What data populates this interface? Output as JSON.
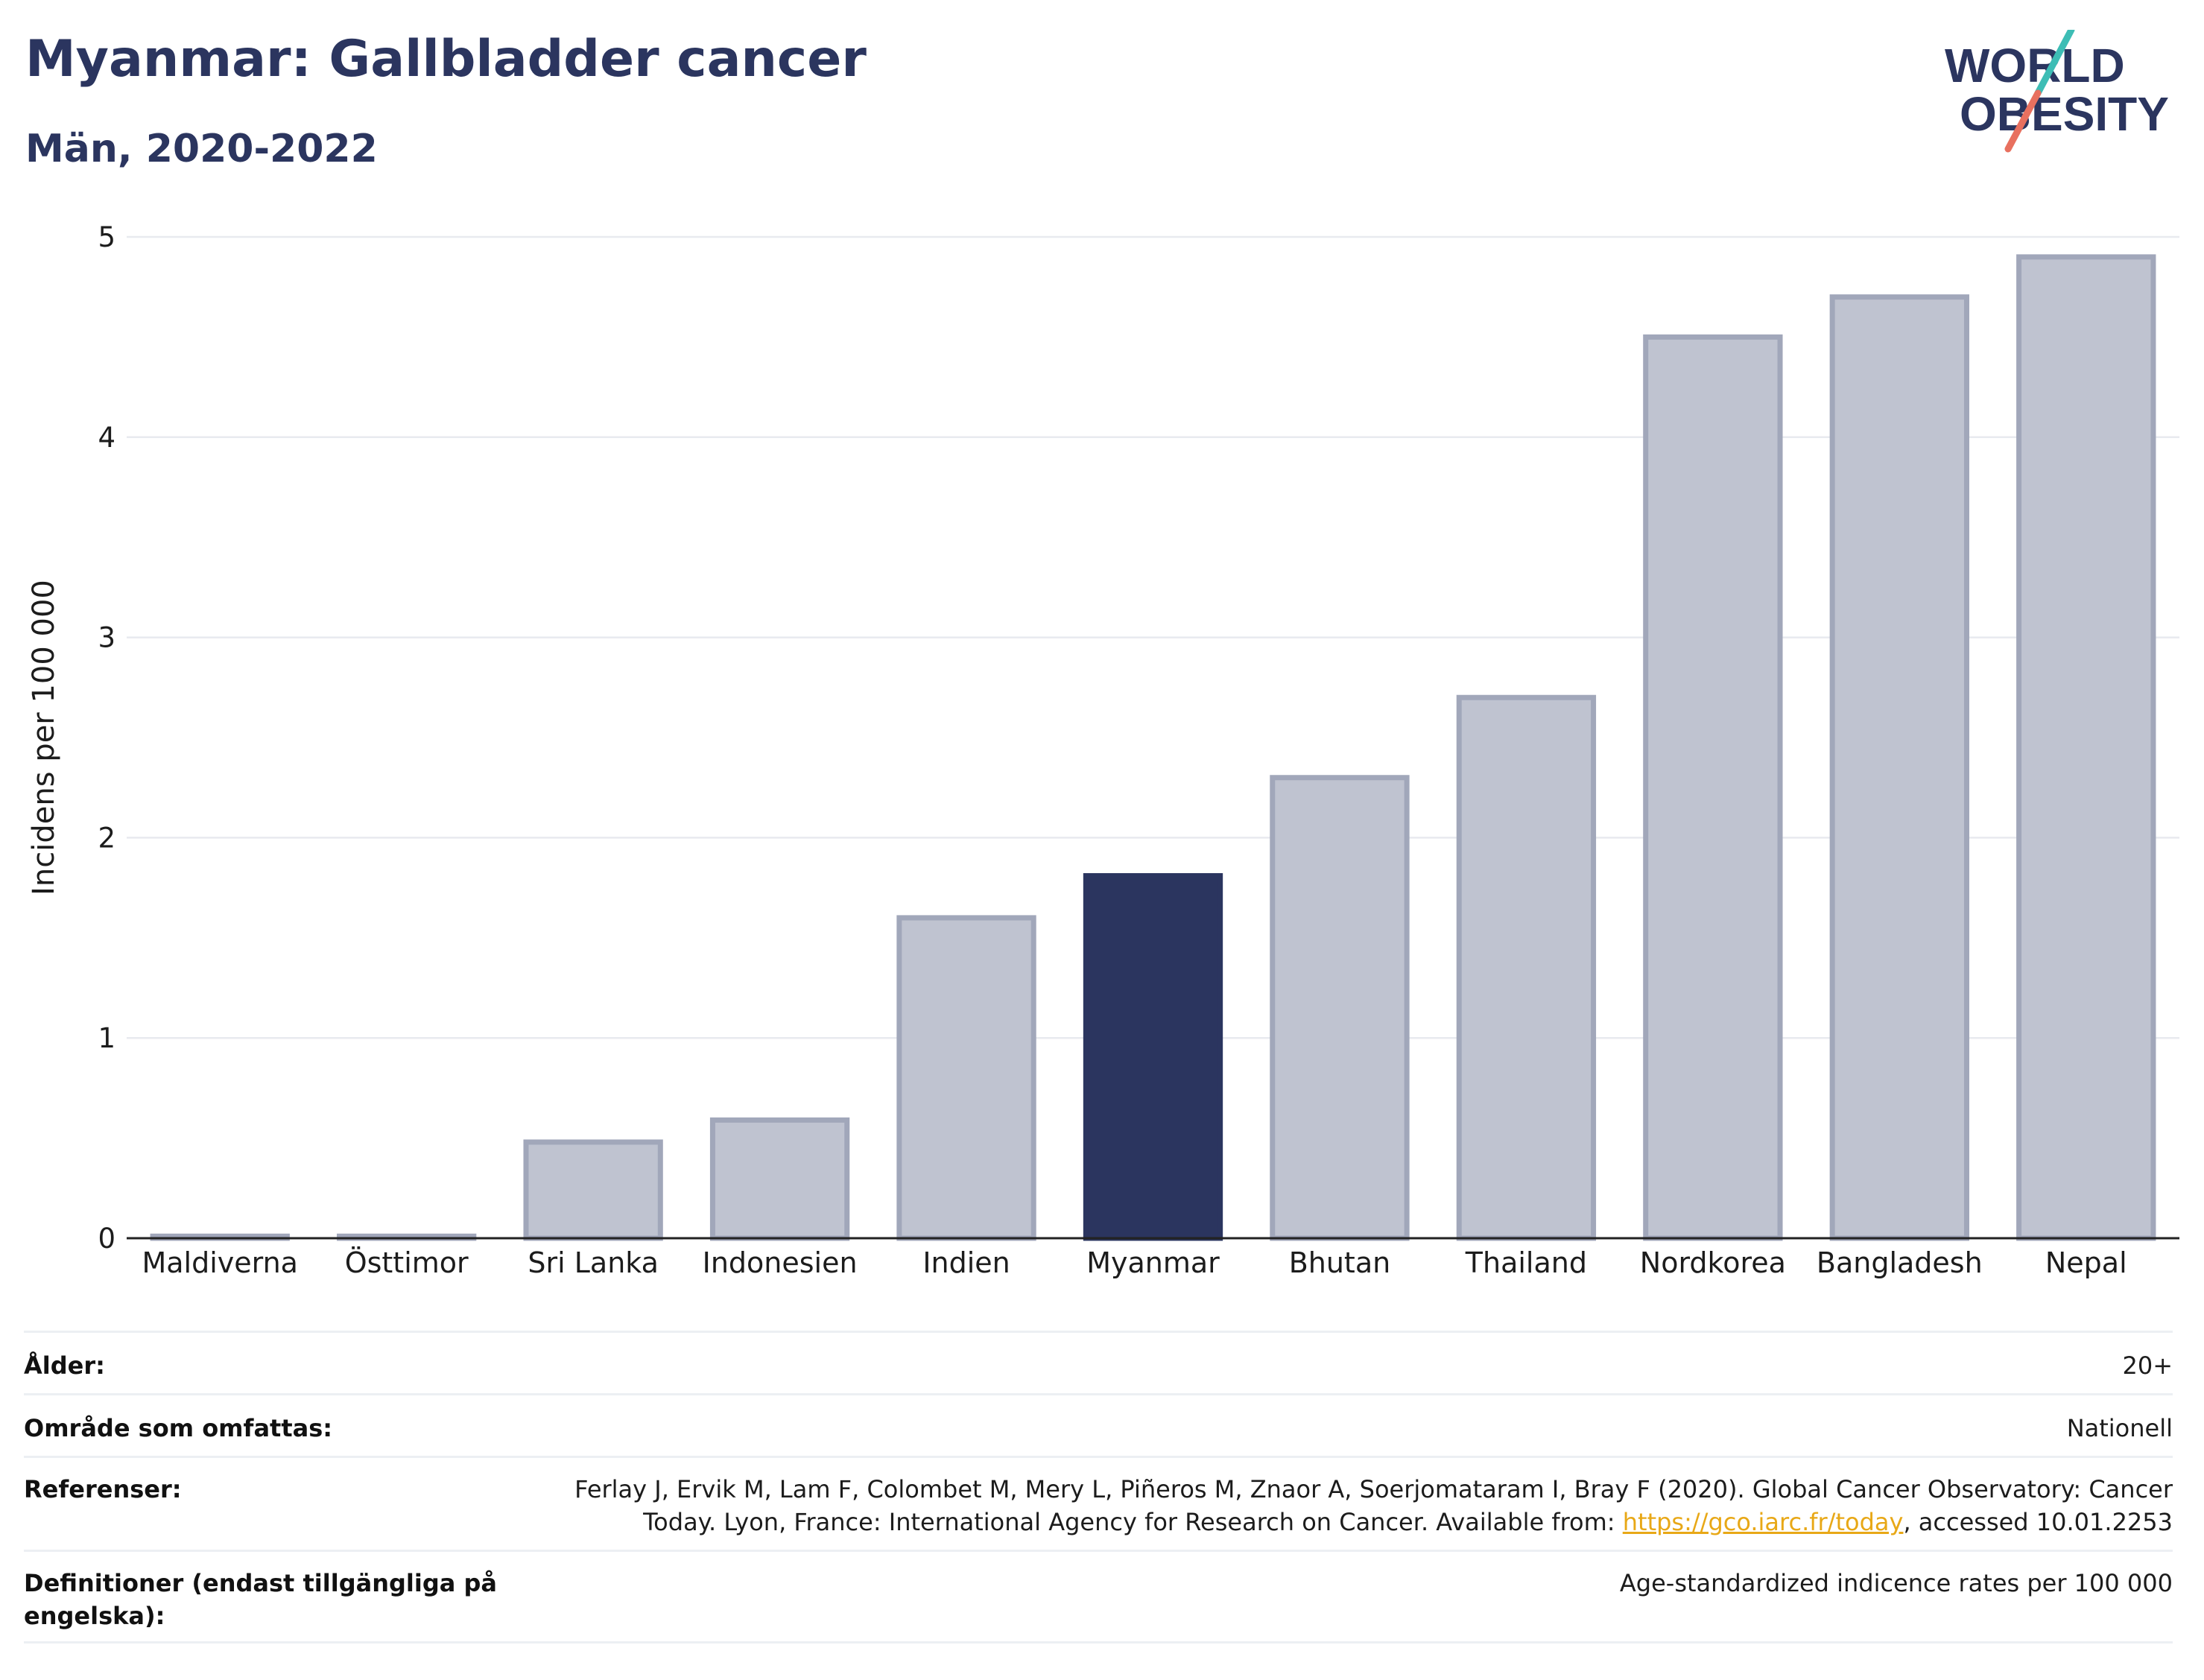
{
  "header": {
    "title": "Myanmar: Gallbladder cancer",
    "subtitle": "Män, 2020-2022"
  },
  "logo": {
    "line1": "WORLD",
    "line2": "OBESITY",
    "icon": "slash-icon"
  },
  "colors": {
    "highlight": "#2b355f",
    "bar_fill": "#bfc3d0",
    "bar_stroke": "#a1a7ba",
    "grid": "#e8eaef",
    "title": "#2b355f",
    "logo_slash_top": "#3dbdb5",
    "logo_slash_bottom": "#e8705f"
  },
  "chart_data": {
    "type": "bar",
    "categories": [
      "Maldiverna",
      "Östtimor",
      "Sri Lanka",
      "Indonesien",
      "Indien",
      "Myanmar",
      "Bhutan",
      "Thailand",
      "Nordkorea",
      "Bangladesh",
      "Nepal"
    ],
    "values": [
      0.01,
      0.01,
      0.48,
      0.59,
      1.6,
      1.81,
      2.3,
      2.7,
      4.5,
      4.7,
      4.9
    ],
    "highlight": "Myanmar",
    "ylabel": "Incidens per 100 000",
    "xlabel": "",
    "ylim": [
      0,
      5
    ],
    "yticks": [
      0,
      1,
      2,
      3,
      4,
      5
    ],
    "grid": true,
    "legend": "none"
  },
  "info": [
    {
      "label": "Ålder:",
      "value": "20+"
    },
    {
      "label": "Område som omfattas:",
      "value": "Nationell"
    },
    {
      "label": "Referenser:",
      "value_pre": "Ferlay J, Ervik M, Lam F, Colombet M, Mery L, Piñeros M, Znaor A, Soerjomataram I, Bray F (2020). Global Cancer Observatory: Cancer Today. Lyon, France: International Agency for Research on Cancer. Available from: ",
      "link": "https://gco.iarc.fr/today",
      "value_post": ", accessed 10.01.2253"
    },
    {
      "label": "Definitioner (endast tillgängliga på engelska):",
      "value": "Age-standardized indicence rates per 100 000"
    }
  ]
}
